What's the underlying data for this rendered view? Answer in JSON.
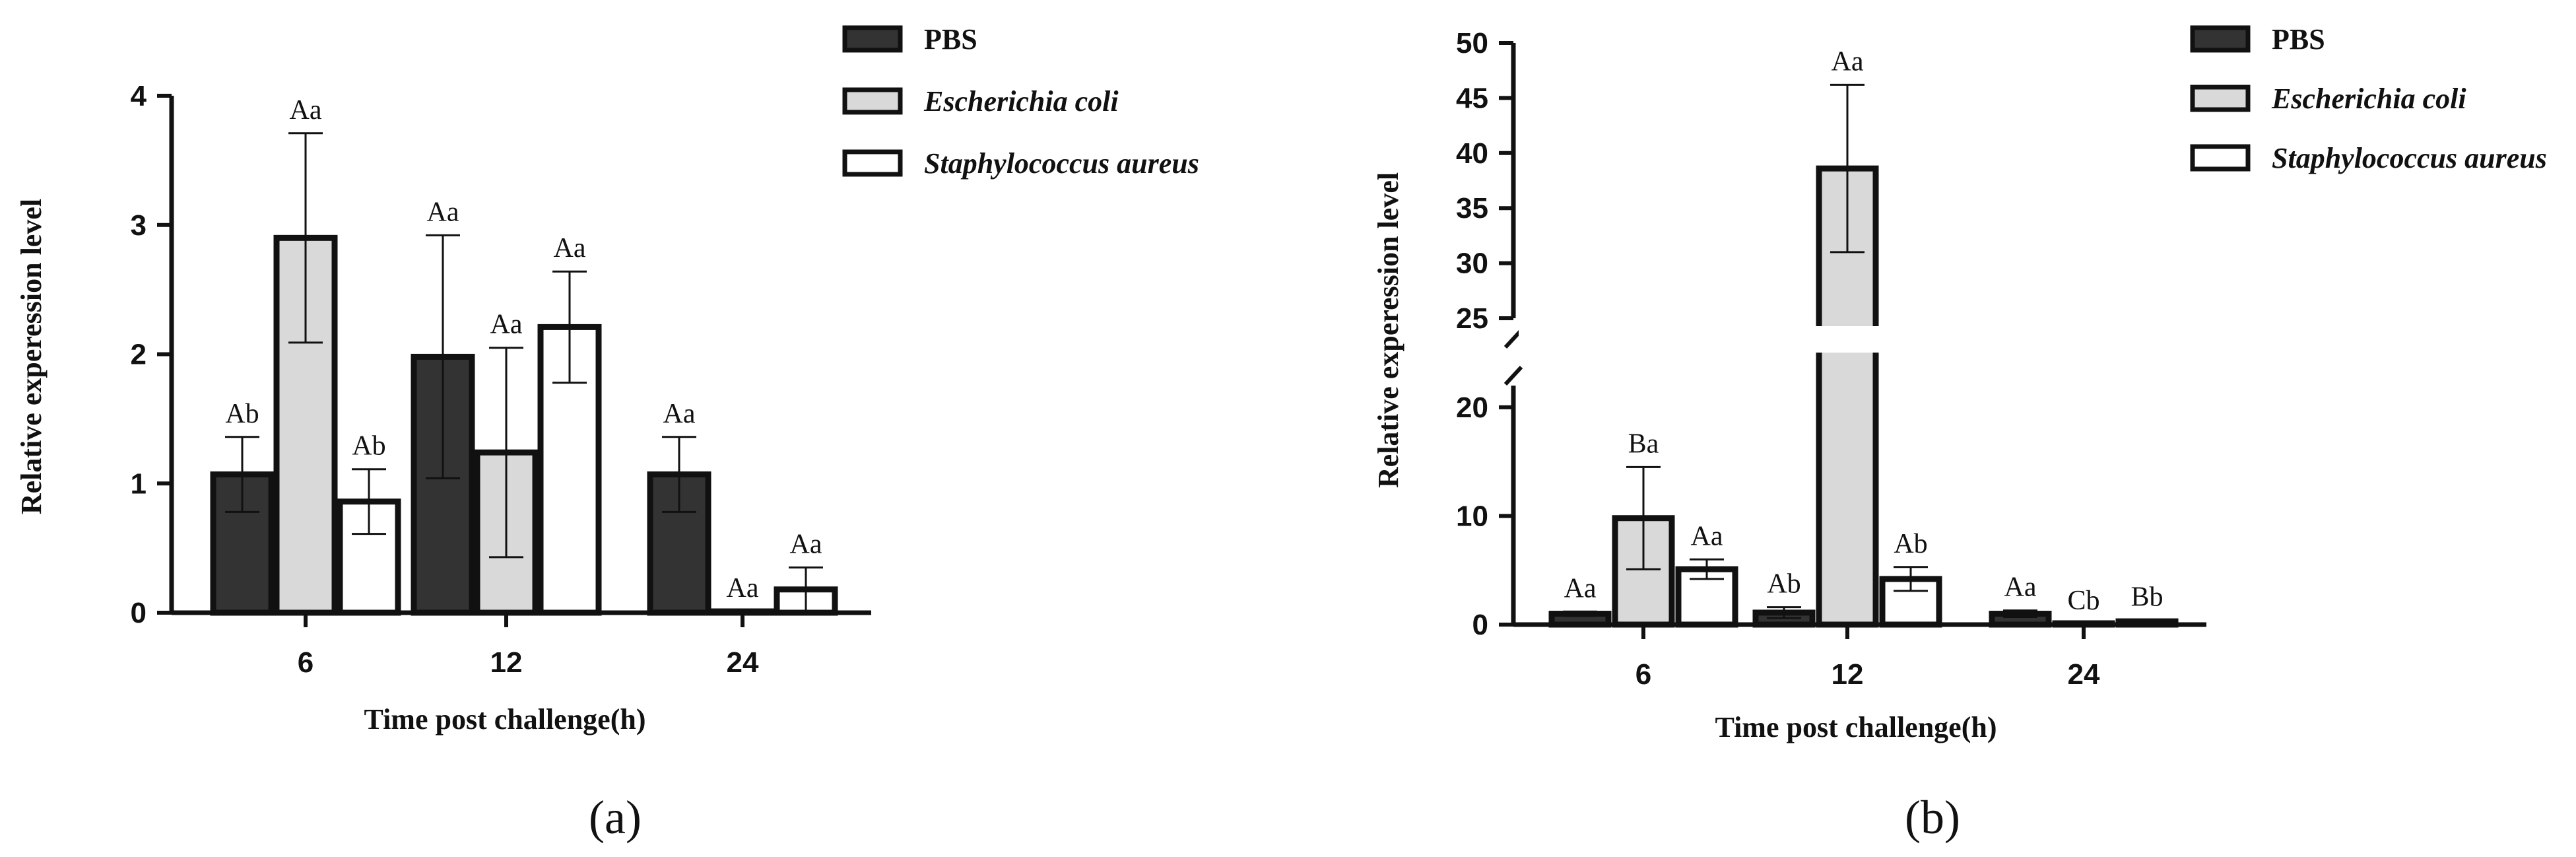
{
  "colors": {
    "PBS": "#333333",
    "Escherichia coli": "#d9d9d9",
    "Staphylococcus aureus": "#ffffff",
    "outline": "#111111"
  },
  "chart_data": [
    {
      "panel_label": "(a)",
      "type": "bar",
      "xlabel": "Time post challenge(h)",
      "ylabel": "Relative experession level",
      "categories": [
        "6",
        "12",
        "24"
      ],
      "ylim": [
        0,
        4
      ],
      "yticks": [
        0,
        1,
        2,
        3,
        4
      ],
      "legend_position": "top-right",
      "series": [
        {
          "name": "PBS",
          "values": [
            1.07,
            1.98,
            1.07
          ],
          "errors": [
            0.29,
            0.94,
            0.29
          ],
          "labels": [
            "Ab",
            "Aa",
            "Aa"
          ]
        },
        {
          "name": "Escherichia coli",
          "values": [
            2.9,
            1.24,
            0.01
          ],
          "errors": [
            0.81,
            0.81,
            0.0
          ],
          "labels": [
            "Aa",
            "Aa",
            "Aa"
          ]
        },
        {
          "name": "Staphylococcus aureus",
          "values": [
            0.86,
            2.21,
            0.18
          ],
          "errors": [
            0.25,
            0.43,
            0.17
          ],
          "labels": [
            "Ab",
            "Aa",
            "Aa"
          ]
        }
      ]
    },
    {
      "panel_label": "(b)",
      "type": "bar",
      "xlabel": "Time post challenge(h)",
      "ylabel": "Relative experession level",
      "categories": [
        "6",
        "12",
        "24"
      ],
      "ylim": [
        0,
        50
      ],
      "axis_break": [
        22,
        25
      ],
      "yticks": [
        0,
        10,
        20,
        25,
        30,
        35,
        40,
        45,
        50
      ],
      "legend_position": "top-right",
      "series": [
        {
          "name": "PBS",
          "values": [
            1.0,
            1.1,
            1.0
          ],
          "errors": [
            0.2,
            0.5,
            0.3
          ],
          "labels": [
            "Aa",
            "Ab",
            "Aa"
          ]
        },
        {
          "name": "Escherichia coli",
          "values": [
            9.8,
            38.6,
            0.05
          ],
          "errors": [
            4.7,
            7.6,
            0.0
          ],
          "labels": [
            "Ba",
            "Aa",
            "Cb"
          ]
        },
        {
          "name": "Staphylococcus aureus",
          "values": [
            5.1,
            4.2,
            0.3
          ],
          "errors": [
            0.9,
            1.1,
            0.1
          ],
          "labels": [
            "Aa",
            "Ab",
            "Bb"
          ]
        }
      ]
    }
  ]
}
